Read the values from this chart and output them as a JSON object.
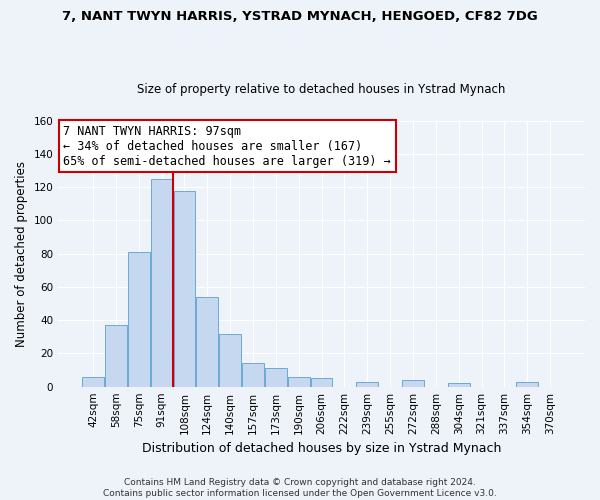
{
  "title": "7, NANT TWYN HARRIS, YSTRAD MYNACH, HENGOED, CF82 7DG",
  "subtitle": "Size of property relative to detached houses in Ystrad Mynach",
  "xlabel": "Distribution of detached houses by size in Ystrad Mynach",
  "ylabel": "Number of detached properties",
  "bin_labels": [
    "42sqm",
    "58sqm",
    "75sqm",
    "91sqm",
    "108sqm",
    "124sqm",
    "140sqm",
    "157sqm",
    "173sqm",
    "190sqm",
    "206sqm",
    "222sqm",
    "239sqm",
    "255sqm",
    "272sqm",
    "288sqm",
    "304sqm",
    "321sqm",
    "337sqm",
    "354sqm",
    "370sqm"
  ],
  "bar_values": [
    6,
    37,
    81,
    125,
    118,
    54,
    32,
    14,
    11,
    6,
    5,
    0,
    3,
    0,
    4,
    0,
    2,
    0,
    0,
    3,
    0
  ],
  "bar_color": "#c5d8f0",
  "bar_edge_color": "#6aaad4",
  "vline_color": "#cc0000",
  "annotation_line1": "7 NANT TWYN HARRIS: 97sqm",
  "annotation_line2": "← 34% of detached houses are smaller (167)",
  "annotation_line3": "65% of semi-detached houses are larger (319) →",
  "annotation_box_color": "white",
  "annotation_box_edge": "#cc0000",
  "ylim": [
    0,
    160
  ],
  "yticks": [
    0,
    20,
    40,
    60,
    80,
    100,
    120,
    140,
    160
  ],
  "footer_line1": "Contains HM Land Registry data © Crown copyright and database right 2024.",
  "footer_line2": "Contains public sector information licensed under the Open Government Licence v3.0.",
  "bg_color": "#eef2f9",
  "grid_color": "#ffffff",
  "title_fontsize": 9.5,
  "subtitle_fontsize": 8.5,
  "ylabel_fontsize": 8.5,
  "xlabel_fontsize": 9.0,
  "tick_fontsize": 7.5,
  "footer_fontsize": 6.5,
  "ann_fontsize": 8.5
}
